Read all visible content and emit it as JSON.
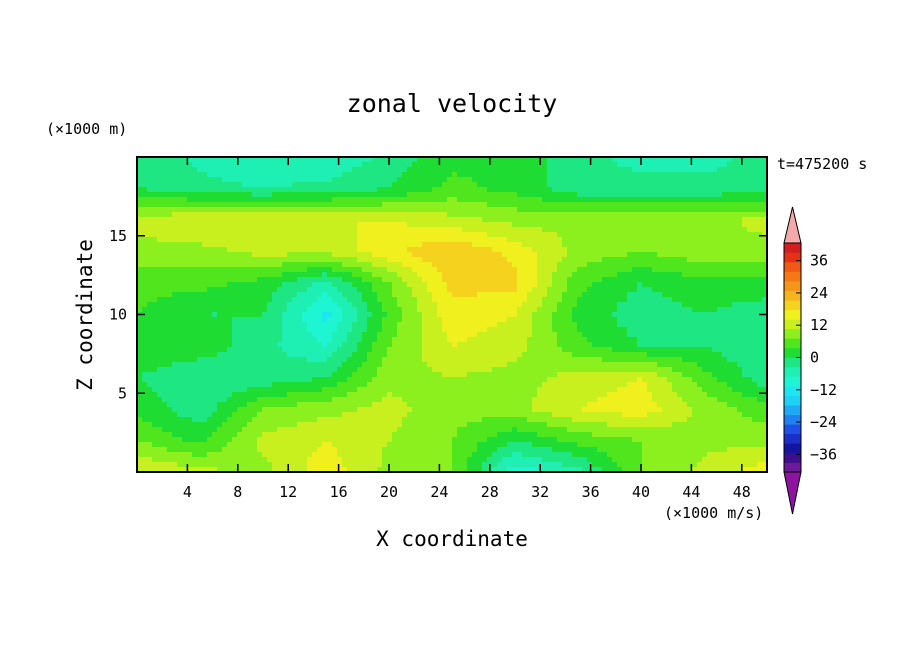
{
  "chart_data": {
    "type": "heatmap",
    "title": "zonal velocity",
    "xlabel": "X coordinate",
    "ylabel": "Z coordinate",
    "x_unit": "(×1000 m/s)",
    "y_unit": "(×1000 m)",
    "time_label": "t=475200 s",
    "xlim": [
      0,
      50
    ],
    "ylim": [
      0,
      20
    ],
    "x_ticks": [
      4,
      8,
      12,
      16,
      20,
      24,
      28,
      32,
      36,
      40,
      44,
      48
    ],
    "y_ticks": [
      5,
      10,
      15
    ],
    "colorbar": {
      "levels": [
        -42,
        -39,
        -36,
        -33,
        -30,
        -27,
        -24,
        -21,
        -18,
        -15,
        -12,
        -9,
        -6,
        -3,
        0,
        3,
        6,
        9,
        12,
        15,
        18,
        21,
        24,
        27,
        30,
        33,
        36,
        39,
        42
      ],
      "tick_labels": [
        "-36",
        "-24",
        "-12",
        "0",
        "12",
        "24",
        "36"
      ],
      "colors": [
        "#6a1a9a",
        "#3c0f8c",
        "#1414a0",
        "#1a2ec8",
        "#1e50e6",
        "#1e82f0",
        "#1eaaf5",
        "#1ed2f5",
        "#1ee6f0",
        "#1ef5d2",
        "#1ef0b4",
        "#1ee682",
        "#1edc32",
        "#50e61e",
        "#8cf01e",
        "#c8f01e",
        "#f0f01e",
        "#f5d21e",
        "#f5b41e",
        "#f59619",
        "#f57814",
        "#f05a14",
        "#e63214",
        "#d21e1e"
      ],
      "under_color": "#8c14a0",
      "over_color": "#f5aaaa"
    },
    "field_grid": {
      "x": [
        0,
        5,
        10,
        15,
        20,
        25,
        30,
        35,
        40,
        45,
        50
      ],
      "z": [
        0,
        2,
        4,
        6,
        8,
        10,
        12,
        14,
        16,
        18,
        20
      ],
      "values": [
        [
          6,
          4,
          2,
          8,
          2,
          0,
          -14,
          -10,
          0,
          4,
          8
        ],
        [
          0,
          -4,
          4,
          6,
          3,
          0,
          -6,
          -2,
          0,
          2,
          2
        ],
        [
          -4,
          -8,
          0,
          2,
          4,
          1,
          2,
          6,
          8,
          2,
          -2
        ],
        [
          -6,
          -9,
          -8,
          -6,
          2,
          3,
          2,
          4,
          6,
          -2,
          -8
        ],
        [
          -3,
          -4,
          -8,
          -12,
          0,
          6,
          4,
          -2,
          -6,
          -6,
          -9
        ],
        [
          -3,
          -6,
          -6,
          -16,
          -2,
          8,
          6,
          -4,
          -8,
          -6,
          -8
        ],
        [
          -2,
          -2,
          -4,
          -10,
          0,
          10,
          10,
          -2,
          -6,
          -4,
          -4
        ],
        [
          2,
          2,
          4,
          4,
          8,
          12,
          8,
          2,
          0,
          2,
          2
        ],
        [
          4,
          6,
          6,
          6,
          6,
          4,
          2,
          2,
          2,
          2,
          4
        ],
        [
          -6,
          -8,
          -9,
          -8,
          -6,
          -2,
          -4,
          -8,
          -8,
          -8,
          -8
        ],
        [
          -6,
          -10,
          -12,
          -12,
          -8,
          -4,
          -4,
          -8,
          -10,
          -10,
          -8
        ]
      ]
    }
  }
}
